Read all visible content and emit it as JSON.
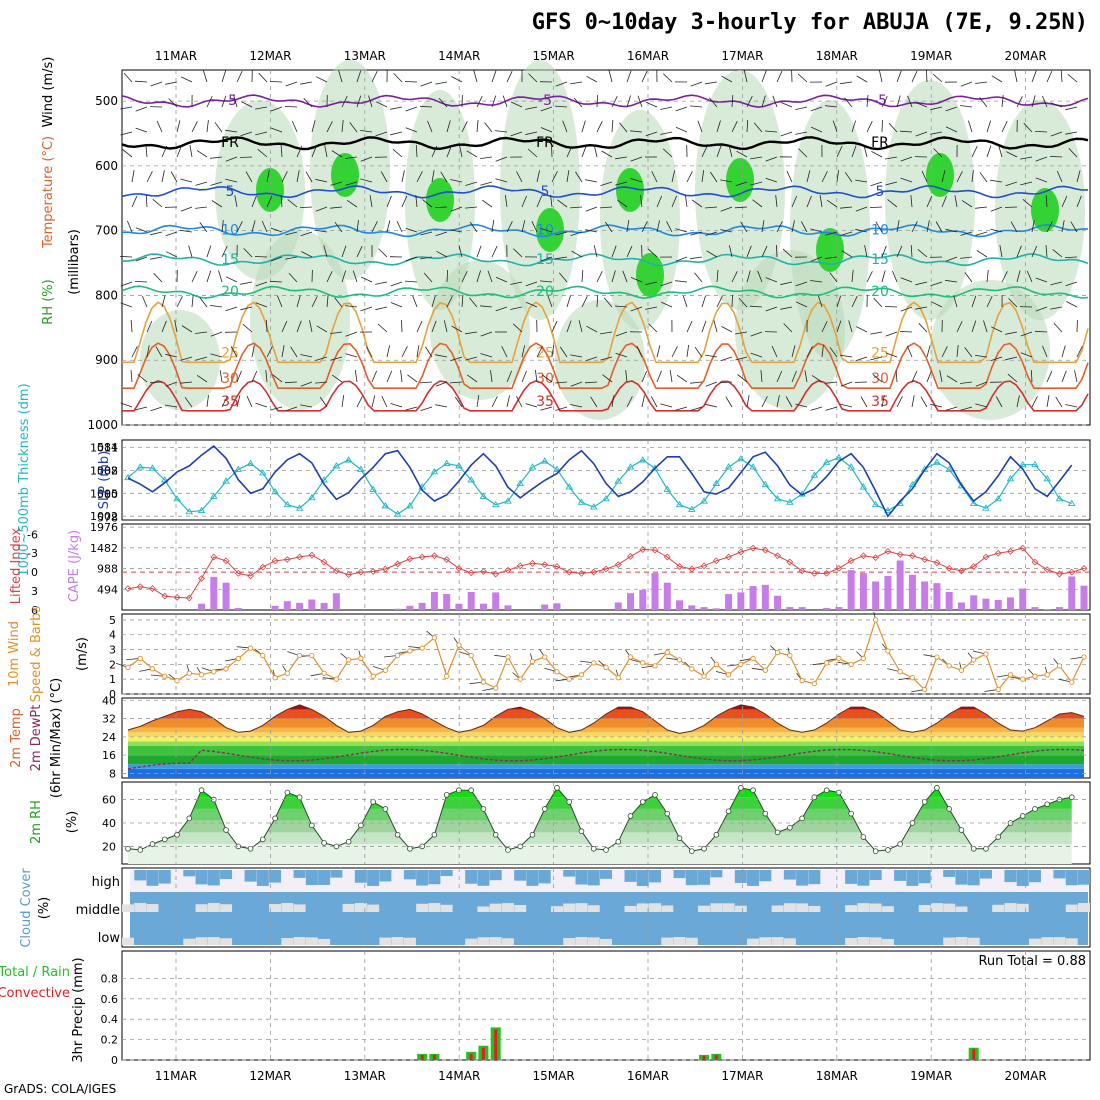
{
  "title": "GFS 0~10day 3-hourly for ABUJA (7E, 9.25N)",
  "footer": "GrADS: COLA/IGES",
  "chart_data": [
    {
      "id": "upper-air",
      "type": "contour",
      "title": "RH (%) / Temperature (°C) / Wind (m/s)",
      "ylabel": "(millibars)",
      "labels": {
        "rh": "RH (%)",
        "temp": "Temperature (°C)",
        "wind": "Wind (m/s)",
        "unit": "(millibars)"
      },
      "y_ticks": [
        500,
        600,
        700,
        800,
        900,
        1000
      ],
      "ylim": [
        1000,
        450
      ],
      "temp_levels": [
        {
          "value": -5,
          "label": "-5",
          "p": 500,
          "color": "#7b1fa2"
        },
        {
          "value": 0,
          "label": "FR",
          "p": 565,
          "color": "#000000"
        },
        {
          "value": 5,
          "label": "5",
          "p": 640,
          "color": "#1e4fd0"
        },
        {
          "value": 10,
          "label": "10",
          "p": 700,
          "color": "#1e88e5"
        },
        {
          "value": 15,
          "label": "15",
          "p": 745,
          "color": "#20b2aa"
        },
        {
          "value": 20,
          "label": "20",
          "p": 795,
          "color": "#1dbd7e"
        },
        {
          "value": 25,
          "label": "25",
          "p": 880,
          "color": "#e6a23c"
        },
        {
          "value": 30,
          "label": "30",
          "p": 920,
          "color": "#e0602a"
        },
        {
          "value": 35,
          "label": "35",
          "p": 955,
          "color": "#d32f2f"
        }
      ],
      "x_labels": [
        "11MAR",
        "12MAR",
        "13MAR",
        "14MAR",
        "15MAR",
        "16MAR",
        "17MAR",
        "18MAR",
        "19MAR",
        "20MAR"
      ]
    },
    {
      "id": "thickness-slp",
      "type": "line",
      "labels": {
        "thickness": "1000~500mb Thickness (dm)",
        "slp": "SLP (mb)"
      },
      "left_ticks": [
        578,
        580,
        582,
        584
      ],
      "right_ticks": [
        1002,
        1005,
        1008,
        1011
      ],
      "series": [
        {
          "name": "Thickness",
          "color": "#20b8c8",
          "values": [
            581.4,
            582.3,
            582.2,
            581.2,
            579.6,
            578.5,
            578.6,
            579.8,
            581.1,
            582.1,
            582.6,
            581.8,
            580.2,
            579.1,
            578.8,
            579.7,
            581.2,
            582.4,
            582.9,
            582.1,
            580.4,
            579.0,
            578.3,
            579.0,
            580.6,
            581.9,
            582.6,
            582.4,
            581.2,
            579.8,
            579.1,
            579.4,
            580.9,
            582.3,
            582.8,
            582.1,
            580.6,
            579.3,
            578.9,
            579.6,
            581.1,
            582.3,
            582.9,
            582.2,
            580.4,
            579.1,
            578.7,
            579.4,
            580.9,
            582.3,
            583.0,
            582.3,
            580.8,
            579.6,
            579.3,
            580.0,
            581.6,
            582.7,
            583.1,
            582.3,
            580.6,
            579.1,
            578.6,
            579.2,
            580.8,
            582.1,
            582.7,
            582.1,
            580.7,
            579.2,
            578.8,
            579.6,
            581.3,
            582.5,
            582.5,
            581.3,
            579.6,
            579.2
          ]
        },
        {
          "name": "SLP",
          "color": "#1b3fb5",
          "values": [
            1007.0,
            1006.2,
            1005.2,
            1006.4,
            1007.8,
            1008.6,
            1010.0,
            1011.2,
            1009.6,
            1006.8,
            1005.0,
            1005.6,
            1007.8,
            1009.4,
            1010.2,
            1009.0,
            1006.2,
            1004.2,
            1005.1,
            1006.9,
            1008.4,
            1010.2,
            1010.6,
            1008.4,
            1005.4,
            1004.0,
            1004.8,
            1006.6,
            1008.7,
            1010.2,
            1008.6,
            1005.8,
            1004.4,
            1005.6,
            1006.7,
            1007.6,
            1009.4,
            1010.6,
            1008.9,
            1006.3,
            1004.6,
            1005.2,
            1006.5,
            1008.3,
            1009.8,
            1009.8,
            1007.6,
            1005.2,
            1004.9,
            1005.7,
            1007.7,
            1009.8,
            1010.4,
            1008.6,
            1006.1,
            1004.8,
            1005.6,
            1007.2,
            1009.2,
            1010.2,
            1008.4,
            1005.3,
            1002.0,
            1004.0,
            1005.6,
            1008.1,
            1010.2,
            1009.0,
            1006.1,
            1004.0,
            1005.2,
            1007.3,
            1009.8,
            1008.2,
            1005.6,
            1004.6,
            1006.6,
            1008.7
          ]
        }
      ]
    },
    {
      "id": "li-cape",
      "type": "bar+line",
      "labels": {
        "li": "Lifted Index",
        "cape": "CAPE (J/kg)"
      },
      "left_ticks": [
        "-6",
        "-3",
        "0",
        "3",
        "6"
      ],
      "right_ticks": [
        "494",
        "988",
        "1482",
        "1976"
      ],
      "cape": [
        0,
        0,
        0,
        0,
        0,
        0,
        150,
        790,
        650,
        50,
        0,
        0,
        100,
        210,
        170,
        250,
        170,
        400,
        0,
        0,
        0,
        0,
        30,
        100,
        170,
        430,
        380,
        150,
        430,
        150,
        420,
        110,
        0,
        0,
        130,
        160,
        0,
        0,
        0,
        0,
        180,
        400,
        480,
        880,
        650,
        230,
        110,
        70,
        40,
        380,
        420,
        570,
        600,
        340,
        70,
        70,
        0,
        50,
        70,
        950,
        880,
        680,
        810,
        1180,
        840,
        680,
        640,
        430,
        180,
        350,
        270,
        240,
        300,
        510,
        70,
        20,
        70,
        800,
        580
      ],
      "li": [
        2.6,
        2.3,
        2.6,
        3.8,
        4.0,
        4.1,
        1.0,
        -2.4,
        -1.8,
        0.2,
        0.6,
        -0.8,
        -1.8,
        -2.0,
        -2.4,
        -2.7,
        -1.6,
        -0.2,
        0.4,
        0.0,
        -0.1,
        -0.5,
        -1.3,
        -2.1,
        -2.4,
        -2.6,
        -2.0,
        -0.6,
        0.1,
        -0.1,
        0.3,
        -0.3,
        -1.0,
        -1.4,
        -1.2,
        -0.9,
        0.0,
        0.2,
        0.0,
        -0.5,
        -1.2,
        -2.5,
        -3.6,
        -3.5,
        -2.4,
        -0.9,
        -0.5,
        -1.0,
        -1.8,
        -2.4,
        -3.2,
        -3.8,
        -3.5,
        -2.6,
        -1.6,
        -0.2,
        0.2,
        0.2,
        -0.6,
        -1.8,
        -2.6,
        -2.3,
        -3.3,
        -2.8,
        -2.6,
        -2.0,
        -1.5,
        -0.6,
        -0.2,
        -0.9,
        -2.4,
        -3.0,
        -3.3,
        -3.8,
        -1.6,
        -0.4,
        0.3,
        0.0,
        -0.6
      ]
    },
    {
      "id": "wind10m",
      "type": "line",
      "labels": {
        "title": "10m Wind",
        "sub": "Speed & Barbs",
        "unit": "(m/s)"
      },
      "y_ticks": [
        0,
        1,
        2,
        3,
        4,
        5
      ],
      "values": [
        1.8,
        2.4,
        1.7,
        1.2,
        0.9,
        1.4,
        1.3,
        1.5,
        1.7,
        2.4,
        3.1,
        2.6,
        1.1,
        1.4,
        2.6,
        2.6,
        1.4,
        1.0,
        2.3,
        2.4,
        1.2,
        1.6,
        2.6,
        2.9,
        3.1,
        3.8,
        1.2,
        3.3,
        2.6,
        0.8,
        0.4,
        2.5,
        1.0,
        2.2,
        2.5,
        1.5,
        1.0,
        1.3,
        2.1,
        1.8,
        1.1,
        2.5,
        2.1,
        1.9,
        2.8,
        2.3,
        1.7,
        1.2,
        2.0,
        1.3,
        2.0,
        2.4,
        1.6,
        2.8,
        2.6,
        0.9,
        0.7,
        2.1,
        2.4,
        2.0,
        2.4,
        5.0,
        2.9,
        1.5,
        1.1,
        0.3,
        2.5,
        1.9,
        1.6,
        2.3,
        2.7,
        0.3,
        1.3,
        1.0,
        1.2,
        1.3,
        1.9,
        0.8,
        2.5
      ]
    },
    {
      "id": "temp2m",
      "type": "area",
      "labels": {
        "title": "2m Temp",
        "sub": "2m DewPt",
        "unit": "(6hr Min/Max) (°C)"
      },
      "y_ticks": [
        8,
        16,
        24,
        32,
        40
      ],
      "temp": [
        27,
        28.6,
        31,
        33,
        35,
        36,
        35,
        32,
        28,
        26,
        26.5,
        29,
        33,
        36,
        38,
        36,
        33,
        29,
        26,
        26.5,
        29,
        33,
        35,
        36,
        34,
        31,
        28,
        26,
        27,
        29,
        33,
        36,
        37,
        35,
        32,
        28,
        26,
        27,
        30,
        34,
        37,
        37,
        35,
        31,
        27,
        25.5,
        26.5,
        29,
        33,
        36,
        38,
        37,
        34,
        30,
        27,
        26,
        27,
        30,
        34,
        37,
        37,
        35,
        31,
        27,
        26,
        27,
        30,
        34,
        37,
        37,
        34,
        30,
        27,
        26.5,
        28,
        31,
        34,
        34.6,
        33
      ]
    },
    {
      "id": "rh2m",
      "type": "area",
      "labels": {
        "title": "2m RH",
        "unit": "(%)"
      },
      "y_ticks": [
        20,
        40,
        60
      ],
      "values": [
        18,
        17,
        22,
        26,
        30,
        44,
        68,
        60,
        34,
        20,
        18,
        26,
        44,
        66,
        62,
        38,
        23,
        20,
        24,
        38,
        58,
        52,
        30,
        18,
        20,
        30,
        64,
        68,
        68,
        52,
        30,
        17,
        20,
        30,
        52,
        70,
        58,
        33,
        18,
        17,
        24,
        46,
        58,
        64,
        48,
        27,
        16,
        18,
        30,
        50,
        70,
        68,
        48,
        32,
        36,
        44,
        62,
        68,
        66,
        48,
        28,
        16,
        17,
        22,
        40,
        58,
        70,
        52,
        34,
        18,
        18,
        28,
        40,
        46,
        52,
        56,
        60,
        62
      ]
    },
    {
      "id": "cloud",
      "type": "stacked-bars",
      "labels": {
        "title": "Cloud Cover",
        "unit": "(%)",
        "high": "high",
        "middle": "middle",
        "low": "low"
      }
    },
    {
      "id": "precip",
      "type": "bar",
      "labels": {
        "title": "3hr Precip (mm)",
        "total": "Total / Rain",
        "conv": "Convective",
        "run_total": "Run Total = 0.88"
      },
      "y_ticks": [
        "0",
        "0.2",
        "0.4",
        "0.6",
        "0.8"
      ],
      "ylim": [
        0,
        1
      ],
      "total": [
        0,
        0,
        0,
        0,
        0,
        0,
        0,
        0,
        0,
        0,
        0,
        0,
        0,
        0,
        0,
        0,
        0,
        0,
        0,
        0,
        0,
        0,
        0,
        0,
        0.06,
        0.06,
        0,
        0,
        0.08,
        0.14,
        0.32,
        0,
        0,
        0,
        0,
        0,
        0,
        0,
        0,
        0,
        0,
        0,
        0,
        0,
        0,
        0,
        0,
        0.05,
        0.06,
        0,
        0,
        0,
        0,
        0,
        0,
        0,
        0,
        0,
        0,
        0,
        0,
        0,
        0,
        0,
        0,
        0,
        0,
        0,
        0,
        0.12,
        0,
        0,
        0,
        0,
        0,
        0,
        0,
        0,
        0
      ],
      "conv": [
        0,
        0,
        0,
        0,
        0,
        0,
        0,
        0,
        0,
        0,
        0,
        0,
        0,
        0,
        0,
        0,
        0,
        0,
        0,
        0,
        0,
        0,
        0,
        0,
        0.05,
        0.05,
        0,
        0,
        0.06,
        0.12,
        0.3,
        0,
        0,
        0,
        0,
        0,
        0,
        0,
        0,
        0,
        0,
        0,
        0,
        0,
        0,
        0,
        0,
        0.04,
        0.05,
        0,
        0,
        0,
        0,
        0,
        0,
        0,
        0,
        0,
        0,
        0,
        0,
        0,
        0,
        0,
        0,
        0,
        0,
        0,
        0,
        0.11,
        0,
        0,
        0,
        0,
        0,
        0,
        0,
        0,
        0
      ]
    }
  ]
}
